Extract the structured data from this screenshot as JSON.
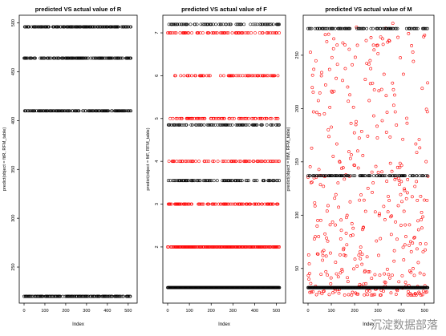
{
  "chart_data": [
    {
      "type": "scatter",
      "title": "predicted VS  actual value of R",
      "xlabel": "Index",
      "ylabel": "predict(object = fitR, RFM_table)",
      "xlim": [
        0,
        520
      ],
      "ylim": [
        218,
        503
      ],
      "xticks": [
        0,
        100,
        200,
        300,
        400,
        500
      ],
      "yticks": [
        250,
        300,
        350,
        400,
        450,
        500
      ],
      "grid": false,
      "levels": [
        220,
        410,
        464,
        496
      ],
      "series": [
        {
          "color": "#000000",
          "values_at_levels": [
            220,
            410,
            464,
            496
          ]
        },
        {
          "color": "#ff0000",
          "values_at_levels": []
        }
      ]
    },
    {
      "type": "scatter",
      "title": "predicted VS  actual value of F",
      "xlabel": "Index",
      "ylabel": "predict(object = fitF, RFM_table)",
      "xlim": [
        0,
        520
      ],
      "ylim": [
        0.8,
        7.3
      ],
      "xticks": [
        0,
        100,
        200,
        300,
        400,
        500
      ],
      "yticks": [
        2,
        3,
        4,
        5,
        6,
        7
      ],
      "grid": false,
      "levels_black": [
        1.05,
        3.55,
        4.85,
        7.2
      ],
      "levels_red": [
        2,
        3,
        4,
        5,
        6,
        7
      ]
    },
    {
      "type": "scatter",
      "title": "predicted VS  actual value of M",
      "xlabel": "Index",
      "ylabel": "predict(object = fitM, RFM_table)",
      "xlim": [
        0,
        520
      ],
      "ylim": [
        22,
        283
      ],
      "xticks": [
        0,
        100,
        200,
        300,
        400,
        500
      ],
      "yticks": [
        50,
        100,
        150,
        200,
        250
      ],
      "grid": false,
      "levels_black": [
        32,
        137,
        275
      ],
      "red_range": [
        25,
        280
      ]
    }
  ],
  "watermark": "沉淀数据部落"
}
